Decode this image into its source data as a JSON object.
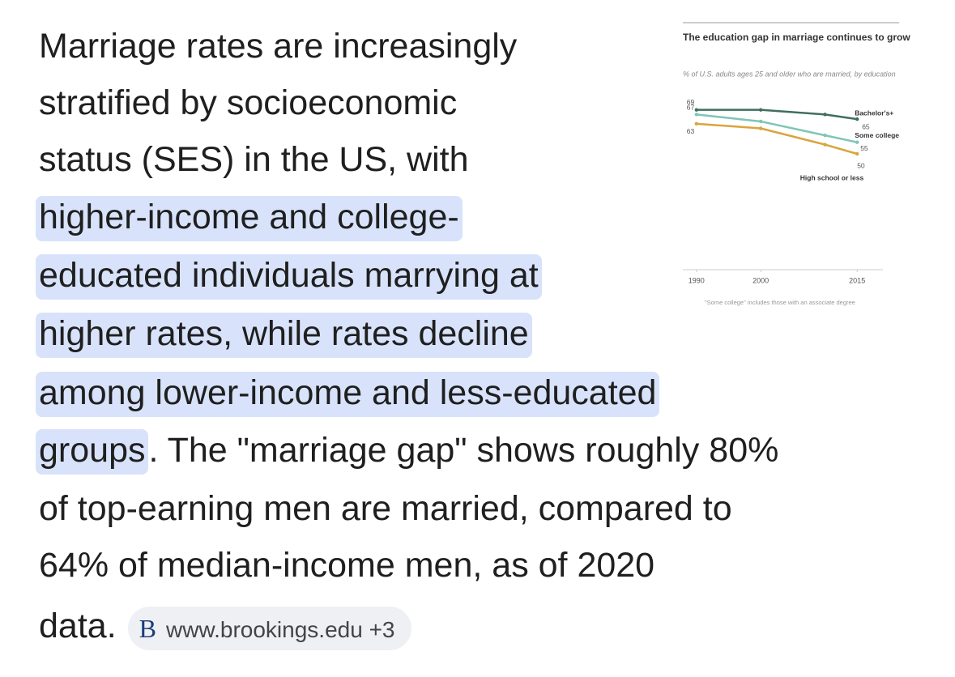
{
  "answer": {
    "lines": [
      [
        {
          "text": "Marriage rates are increasingly",
          "highlight": false
        }
      ],
      [
        {
          "text": "stratified by socioeconomic",
          "highlight": false
        }
      ],
      [
        {
          "text": "status (SES) in the US, with",
          "highlight": false
        }
      ],
      [
        {
          "text": "higher-income and college-",
          "highlight": true
        }
      ],
      [
        {
          "text": "educated individuals marrying at",
          "highlight": true
        }
      ],
      [
        {
          "text": "higher rates, while rates decline",
          "highlight": true
        }
      ],
      [
        {
          "text": "among lower-income and less-educated",
          "highlight": true
        }
      ],
      [
        {
          "text": "groups",
          "highlight": true
        },
        {
          "text": ". The \"marriage gap\" shows roughly 80%",
          "highlight": false
        }
      ],
      [
        {
          "text": "of top-earning men are married, compared to",
          "highlight": false
        }
      ],
      [
        {
          "text": "64% of median-income men, as of 2020",
          "highlight": false
        }
      ],
      [
        {
          "text": "data.",
          "highlight": false
        }
      ]
    ],
    "source": {
      "icon": "B",
      "label": "www.brookings.edu +3"
    }
  },
  "chart_data": {
    "type": "line",
    "title": "The education gap in marriage continues to grow",
    "subtitle": "% of U.S. adults ages 25 and older who are married, by education",
    "note": "\"Some college\" includes those with an associate degree",
    "x": [
      1990,
      2000,
      2010,
      2015
    ],
    "xlim": [
      1987,
      2018
    ],
    "xticks": [
      1990,
      2000,
      2015
    ],
    "ylim": [
      0,
      75
    ],
    "series": [
      {
        "name": "Bachelor's+",
        "color": "#3f6e60",
        "values": [
          69,
          69,
          67,
          65
        ]
      },
      {
        "name": "Some college",
        "color": "#7fc5b6",
        "values": [
          67,
          64,
          58,
          55
        ]
      },
      {
        "name": "High school or less",
        "color": "#d9a53c",
        "values": [
          63,
          61,
          54,
          50
        ]
      }
    ]
  }
}
